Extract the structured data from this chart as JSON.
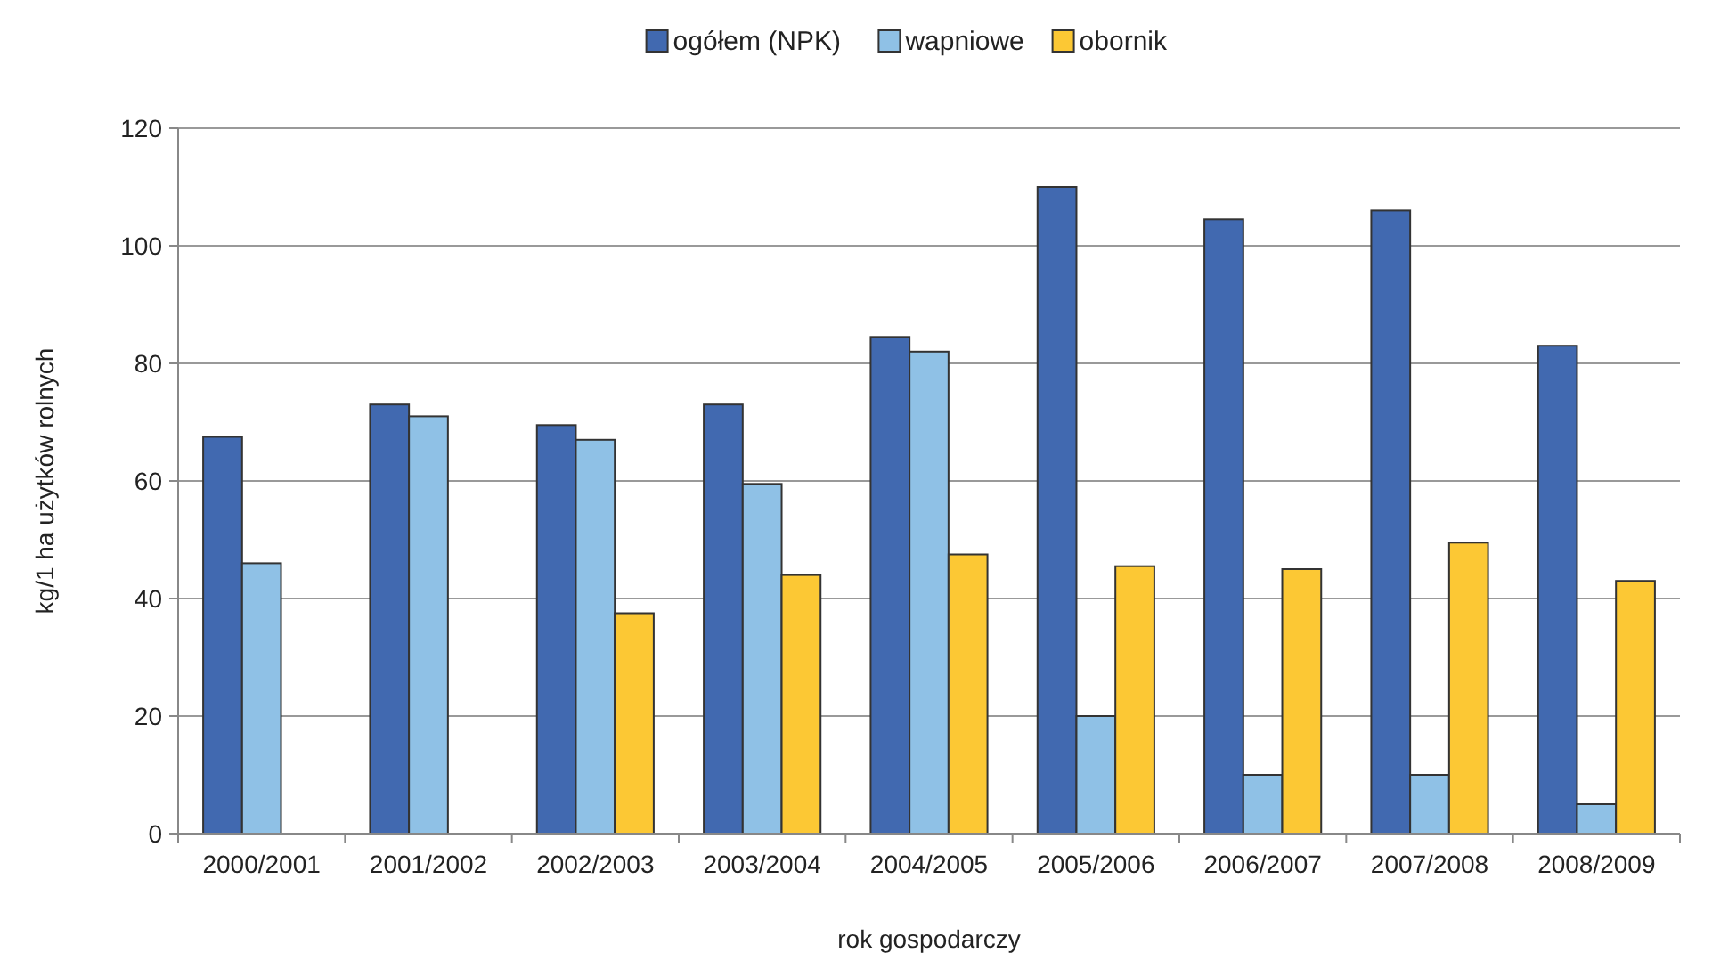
{
  "chart_data": {
    "type": "bar",
    "xlabel": "rok gospodarczy",
    "ylabel": "kg/1 ha użytków rolnych",
    "categories": [
      "2000/2001",
      "2001/2002",
      "2002/2003",
      "2003/2004",
      "2004/2005",
      "2005/2006",
      "2006/2007",
      "2007/2008",
      "2008/2009"
    ],
    "series": [
      {
        "name": "ogółem (NPK)",
        "color": "#4169b0",
        "values": [
          67.5,
          73,
          69.5,
          73,
          84.5,
          110,
          104.5,
          106,
          83
        ]
      },
      {
        "name": "wapniowe",
        "color": "#8fc1e6",
        "values": [
          46,
          71,
          67,
          59.5,
          82,
          20,
          10,
          10,
          5
        ]
      },
      {
        "name": "obornik",
        "color": "#fcc834",
        "values": [
          null,
          null,
          37.5,
          44,
          47.5,
          45.5,
          45,
          49.5,
          43
        ]
      }
    ],
    "ylim": [
      0,
      120
    ],
    "yticks": [
      0,
      20,
      40,
      60,
      80,
      100,
      120
    ],
    "grid": "y",
    "legend": "top"
  }
}
